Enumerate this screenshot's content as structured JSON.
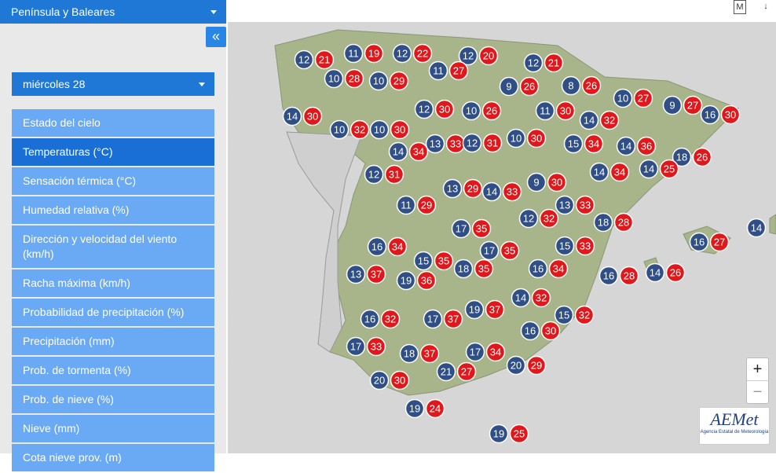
{
  "region_select": "Península y Baleares",
  "collapse_button": "«",
  "day_select": "miércoles 28",
  "menu": [
    "Estado del cielo",
    "Temperaturas (°C)",
    "Sensación térmica (°C)",
    "Humedad relativa (%)",
    "Dirección y velocidad del viento (km/h)",
    "Racha máxima (km/h)",
    "Probabilidad de precipitación (%)",
    "Precipitación (mm)",
    "Prob. de tormenta (%)",
    "Prob. de nieve (%)",
    "Nieve (mm)",
    "Cota nieve prov. (m)"
  ],
  "selected_menu_item": "Temperaturas (°C)",
  "toolbar": [
    "M",
    "↓"
  ],
  "zoom": [
    "+",
    "−"
  ],
  "logo": {
    "name": "AEMet",
    "subtitle": "Agencia Estatal de Meteorología"
  },
  "stations": [
    {
      "min": 12,
      "max": 21
    },
    {
      "min": 11,
      "max": 19
    },
    {
      "min": 12,
      "max": 22
    },
    {
      "min": 12,
      "max": 20
    },
    {
      "min": 12,
      "max": 21
    },
    {
      "min": 10,
      "max": 28
    },
    {
      "min": 10,
      "max": 29
    },
    {
      "min": 11,
      "max": 27
    },
    {
      "min": 9,
      "max": 26
    },
    {
      "min": 8,
      "max": 26
    },
    {
      "min": 10,
      "max": 27
    },
    {
      "min": 9,
      "max": 27
    },
    {
      "min": 16,
      "max": 30
    },
    {
      "min": 14,
      "max": 30
    },
    {
      "min": 12,
      "max": 30
    },
    {
      "min": 10,
      "max": 26
    },
    {
      "min": 11,
      "max": 30
    },
    {
      "min": 14,
      "max": 32
    },
    {
      "min": 10,
      "max": 32
    },
    {
      "min": 10,
      "max": 30
    },
    {
      "min": 14,
      "max": 34
    },
    {
      "min": 13,
      "max": 33
    },
    {
      "min": 12,
      "max": 31
    },
    {
      "min": 10,
      "max": 30
    },
    {
      "min": 15,
      "max": 34
    },
    {
      "min": 14,
      "max": 36
    },
    {
      "min": 18,
      "max": 26
    },
    {
      "min": 12,
      "max": 31
    },
    {
      "min": 14,
      "max": 34
    },
    {
      "min": 14,
      "max": 25
    },
    {
      "min": 13,
      "max": 29
    },
    {
      "min": 14,
      "max": 33
    },
    {
      "min": 9,
      "max": 30
    },
    {
      "min": 11,
      "max": 29
    },
    {
      "min": 12,
      "max": 32
    },
    {
      "min": 13,
      "max": 33
    },
    {
      "min": 18,
      "max": 28
    },
    {
      "min": 14
    },
    {
      "min": 17,
      "max": 35
    },
    {
      "min": 16,
      "max": 27
    },
    {
      "min": 16,
      "max": 34
    },
    {
      "min": 17,
      "max": 35
    },
    {
      "min": 15,
      "max": 33
    },
    {
      "min": 15,
      "max": 35
    },
    {
      "min": 18,
      "max": 35
    },
    {
      "min": 16,
      "max": 34
    },
    {
      "min": 13,
      "max": 37
    },
    {
      "min": 19,
      "max": 36
    },
    {
      "min": 16,
      "max": 28
    },
    {
      "min": 14,
      "max": 26
    },
    {
      "min": 14,
      "max": 32
    },
    {
      "min": 19,
      "max": 37
    },
    {
      "min": 15,
      "max": 32
    },
    {
      "min": 16,
      "max": 32
    },
    {
      "min": 17,
      "max": 37
    },
    {
      "min": 16,
      "max": 30
    },
    {
      "min": 17,
      "max": 33
    },
    {
      "min": 18,
      "max": 37
    },
    {
      "min": 17,
      "max": 34
    },
    {
      "min": 20,
      "max": 29
    },
    {
      "min": 21,
      "max": 27
    },
    {
      "min": 20,
      "max": 30
    },
    {
      "min": 19,
      "max": 24
    },
    {
      "min": 19,
      "max": 25
    }
  ]
}
